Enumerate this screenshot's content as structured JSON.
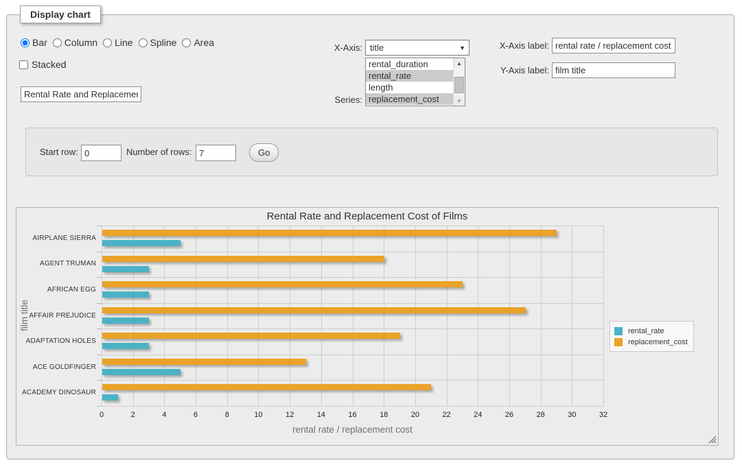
{
  "panel": {
    "legend": "Display chart"
  },
  "chart_type": {
    "options": [
      {
        "label": "Bar",
        "selected": true
      },
      {
        "label": "Column",
        "selected": false
      },
      {
        "label": "Line",
        "selected": false
      },
      {
        "label": "Spline",
        "selected": false
      },
      {
        "label": "Area",
        "selected": false
      }
    ]
  },
  "stacked": {
    "label": "Stacked",
    "checked": false
  },
  "title_input": {
    "value": "Rental Rate and Replacemer"
  },
  "x_axis": {
    "label": "X-Axis:",
    "selected": "title"
  },
  "series_select": {
    "label": "Series:",
    "options": [
      {
        "label": "rental_duration",
        "selected": false
      },
      {
        "label": "rental_rate",
        "selected": true
      },
      {
        "label": "length",
        "selected": false
      },
      {
        "label": "replacement_cost",
        "selected": true
      }
    ]
  },
  "x_axis_label": {
    "label": "X-Axis label:",
    "value": "rental rate / replacement cost"
  },
  "y_axis_label": {
    "label": "Y-Axis label:",
    "value": "film title"
  },
  "row_controls": {
    "start_row_label": "Start row:",
    "start_row_value": "0",
    "num_rows_label": "Number of rows:",
    "num_rows_value": "7",
    "go_label": "Go"
  },
  "chart_data": {
    "type": "bar",
    "orientation": "horizontal",
    "title": "Rental Rate and Replacement Cost of Films",
    "categories": [
      "AIRPLANE SIERRA",
      "AGENT TRUMAN",
      "AFRICAN EGG",
      "AFFAIR PREJUDICE",
      "ADAPTATION HOLES",
      "ACE GOLDFINGER",
      "ACADEMY DINOSAUR"
    ],
    "series": [
      {
        "name": "rental_rate",
        "color": "#4bb2c5",
        "values": [
          4.99,
          2.99,
          2.99,
          2.99,
          2.99,
          4.99,
          0.99
        ]
      },
      {
        "name": "replacement_cost",
        "color": "#eaa228",
        "values": [
          28.99,
          17.99,
          22.99,
          26.99,
          18.99,
          12.99,
          20.99
        ]
      }
    ],
    "xlabel": "rental rate / replacement cost",
    "ylabel": "film title",
    "xlim": [
      0,
      32
    ],
    "xticks": [
      0,
      2,
      4,
      6,
      8,
      10,
      12,
      14,
      16,
      18,
      20,
      22,
      24,
      26,
      28,
      30,
      32
    ],
    "grid": true,
    "legend_position": "right"
  }
}
